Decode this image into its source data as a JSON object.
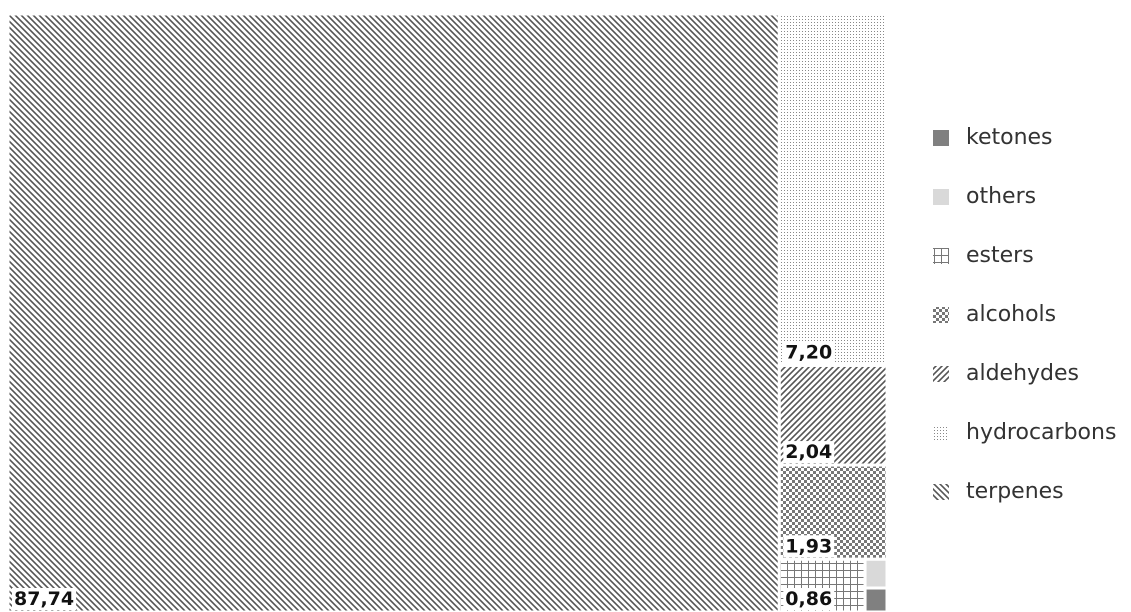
{
  "chart_data": {
    "type": "treemap",
    "categories": [
      "terpenes",
      "hydrocarbons",
      "aldehydes",
      "alcohols",
      "esters",
      "others",
      "ketones"
    ],
    "values": [
      87.74,
      7.2,
      2.04,
      1.93,
      0.86,
      0.12,
      0.1
    ],
    "value_labels": [
      "87,74",
      "7,20",
      "2,04",
      "1,93",
      "0,86",
      null,
      null
    ],
    "colors": [
      "#555555",
      "#888888",
      "#555555",
      "#777777",
      "#777777",
      "#d9d9d9",
      "#808080"
    ],
    "legend": "right"
  }
}
